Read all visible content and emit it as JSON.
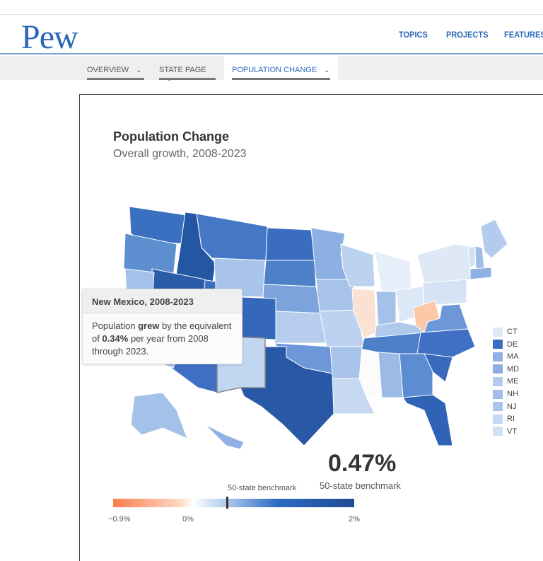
{
  "header": {
    "logo": "Pew",
    "nav": [
      "TOPICS",
      "PROJECTS",
      "FEATURES"
    ]
  },
  "subnav": {
    "tabs": [
      {
        "label": "OVERVIEW",
        "active": false
      },
      {
        "label": "STATE PAGE",
        "active": false
      },
      {
        "label": "POPULATION CHANGE",
        "active": true
      }
    ]
  },
  "chart": {
    "title": "Population Change",
    "subtitle": "Overall growth, 2008-2023",
    "tooltip": {
      "title": "New Mexico, 2008-2023",
      "text_pre": "Population ",
      "text_bold": "grew",
      "text_mid": " by the equivalent of ",
      "value": "0.34%",
      "text_post": " per year from 2008 through 2023."
    },
    "benchmark_value": "0.47%",
    "benchmark_label": "50-state benchmark",
    "scale": {
      "marker_label": "50-state benchmark",
      "min_label": "−0.9%",
      "zero_label": "0%",
      "max_label": "2%",
      "min": -0.9,
      "max": 2,
      "benchmark": 0.47
    },
    "small_states": [
      {
        "label": "CT",
        "color": "#dde7f6"
      },
      {
        "label": "DE",
        "color": "#3a6dc0"
      },
      {
        "label": "MA",
        "color": "#8eb0e2"
      },
      {
        "label": "MD",
        "color": "#8aaee2"
      },
      {
        "label": "ME",
        "color": "#b3cbee"
      },
      {
        "label": "NH",
        "color": "#9fbde8"
      },
      {
        "label": "NJ",
        "color": "#a9c4ea"
      },
      {
        "label": "RI",
        "color": "#c5d7f2"
      },
      {
        "label": "VT",
        "color": "#d2e0f4"
      }
    ],
    "state_fills": {
      "WA": "#3b6fc0",
      "OR": "#5d8fd0",
      "ID": "#2456a4",
      "MT": "#4477c6",
      "WY": "#a9c4ea",
      "ND": "#3a6cbf",
      "SD": "#4e80c8",
      "NE": "#7ca3dc",
      "KS": "#b6cdee",
      "MN": "#8db0e2",
      "IA": "#a8c4ea",
      "MO": "#bcd2f0",
      "WI": "#bcd3f0",
      "IL": "#fbe0d4",
      "MI": "#e6eef9",
      "IN": "#a4c1ea",
      "OH": "#dde8f7",
      "NY": "#dfe8f6",
      "PA": "#d6e3f5",
      "WV": "#fbc9a8",
      "VA": "#6d97d8",
      "NC": "#3f70c3",
      "SC": "#3769bd",
      "GA": "#5c8cd1",
      "FL": "#2f63b5",
      "AL": "#9bbae6",
      "MS": "#fbfbfb",
      "LA": "#c7d9f2",
      "AR": "#a8c4ea",
      "TN": "#4d7fc8",
      "KY": "#b0caec",
      "OK": "#6d97d8",
      "TX": "#2858a6",
      "NM": "#c1d6f1",
      "AZ": "#3e6fc2",
      "CO": "#3568bb",
      "UT": "#3d6ec2",
      "NV": "#2a5ca8",
      "CA": "#a3c1ea",
      "AK": "#a4c1ea",
      "HI": "#8fb1e3",
      "ME": "#b3cbee",
      "VT": "#d2e0f4",
      "NH": "#9fbde8",
      "MA": "#8eb0e2"
    }
  }
}
